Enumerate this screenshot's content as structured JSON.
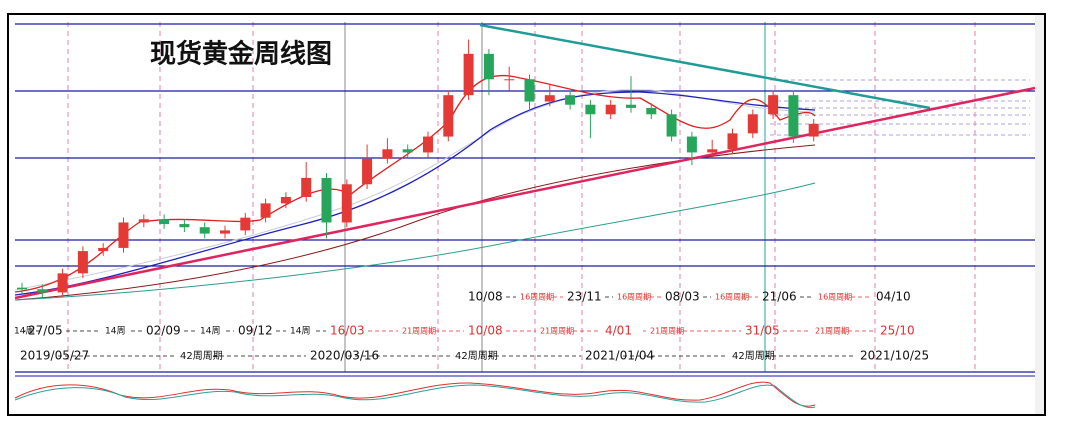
{
  "chart_data": {
    "type": "candlestick",
    "title": "现货黄金周线图",
    "up_color": "#e53935",
    "down_color": "#26a65b",
    "ylim": [
      1030,
      2130
    ],
    "open": [
      1295,
      1290,
      1280,
      1340,
      1410,
      1420,
      1500,
      1510,
      1495,
      1485,
      1465,
      1475,
      1515,
      1560,
      1580,
      1640,
      1500,
      1620,
      1700,
      1730,
      1720,
      1770,
      1900,
      2030,
      1950,
      1950,
      1880,
      1900,
      1870,
      1840,
      1870,
      1860,
      1840,
      1770,
      1720,
      1730,
      1780,
      1840,
      1900,
      1770
    ],
    "high": [
      1310,
      1305,
      1355,
      1425,
      1435,
      1515,
      1525,
      1525,
      1510,
      1500,
      1490,
      1530,
      1575,
      1595,
      1690,
      1655,
      1635,
      1745,
      1765,
      1745,
      1785,
      1915,
      2075,
      2045,
      1990,
      1965,
      1935,
      1915,
      1885,
      1885,
      1960,
      1875,
      1855,
      1785,
      1760,
      1795,
      1855,
      1915,
      1915,
      1825
    ],
    "low": [
      1275,
      1265,
      1265,
      1325,
      1395,
      1405,
      1485,
      1480,
      1470,
      1450,
      1450,
      1460,
      1500,
      1545,
      1565,
      1450,
      1485,
      1605,
      1685,
      1705,
      1705,
      1755,
      1885,
      1900,
      1915,
      1850,
      1865,
      1855,
      1765,
      1825,
      1845,
      1825,
      1755,
      1680,
      1705,
      1715,
      1765,
      1825,
      1750,
      1755
    ],
    "close": [
      1290,
      1280,
      1340,
      1410,
      1420,
      1500,
      1510,
      1495,
      1485,
      1465,
      1475,
      1515,
      1560,
      1580,
      1640,
      1500,
      1620,
      1700,
      1730,
      1720,
      1770,
      1900,
      2030,
      1950,
      1950,
      1880,
      1900,
      1870,
      1840,
      1870,
      1860,
      1840,
      1770,
      1720,
      1730,
      1780,
      1840,
      1900,
      1770,
      1810
    ],
    "annotations": {
      "row1": [
        "10/08",
        "16周周期",
        "23/11",
        "16周周期",
        "08/03",
        "16周周期",
        "21/06",
        "16周周期",
        "04/10"
      ],
      "row2": [
        "14周",
        "27/05",
        "14周",
        "02/09",
        "14周",
        "09/12",
        "14周",
        "16/03",
        "21周周期",
        "10/08",
        "21周周期",
        "4/01",
        "21周周期",
        "31/05",
        "21周周期",
        "25/10"
      ],
      "row3": [
        "2019/05/27",
        "42周周期",
        "2020/03/16",
        "42周周期",
        "2021/01/04",
        "42周周期",
        "2021/10/25"
      ]
    }
  }
}
